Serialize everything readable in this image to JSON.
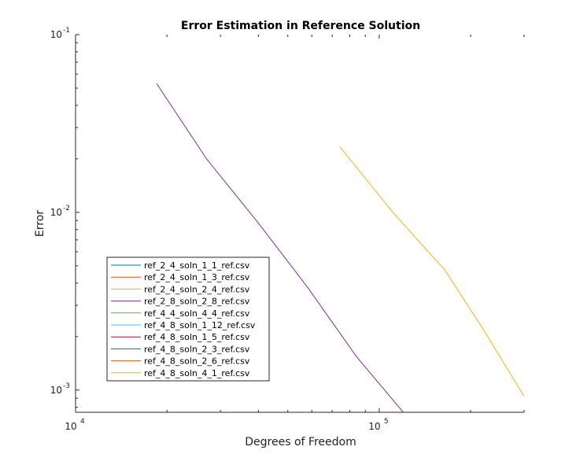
{
  "chart_data": {
    "type": "line",
    "title": "Error Estimation in Reference Solution",
    "xlabel": "Degrees of Freedom",
    "ylabel": "Error",
    "xscale": "log",
    "yscale": "log",
    "xlim": [
      10000,
      300000
    ],
    "ylim": [
      0.00075,
      0.1
    ],
    "x_ticks": [
      {
        "value": 10000,
        "base": "10",
        "exp": "4"
      },
      {
        "value": 100000,
        "base": "10",
        "exp": "5"
      }
    ],
    "y_ticks": [
      {
        "value": 0.001,
        "base": "10",
        "exp": "-3"
      },
      {
        "value": 0.01,
        "base": "10",
        "exp": "-2"
      },
      {
        "value": 0.1,
        "base": "10",
        "exp": "-1"
      }
    ],
    "grid": false,
    "legend_position": "lower-left",
    "series": [
      {
        "name": "ref_2_4_soln_1_1_ref.csv",
        "color": "#0072bd",
        "x": [],
        "y": []
      },
      {
        "name": "ref_2_4_soln_1_3_ref.csv",
        "color": "#d95319",
        "x": [],
        "y": []
      },
      {
        "name": "ref_2_4_soln_2_4_ref.csv",
        "color": "#edb120",
        "x": [
          74000,
          112000,
          165000,
          220000,
          300000
        ],
        "y": [
          0.0235,
          0.0098,
          0.0047,
          0.0022,
          0.00092
        ]
      },
      {
        "name": "ref_2_8_soln_2_8_ref.csv",
        "color": "#7e2f8e",
        "x": [
          18500,
          27000,
          40000,
          58000,
          84000,
          120000
        ],
        "y": [
          0.053,
          0.02,
          0.0087,
          0.0038,
          0.00155,
          0.00075
        ]
      },
      {
        "name": "ref_4_4_soln_4_4_ref.csv",
        "color": "#77ac30",
        "x": [],
        "y": []
      },
      {
        "name": "ref_4_8_soln_1_12_ref.csv",
        "color": "#4dbeee",
        "x": [],
        "y": []
      },
      {
        "name": "ref_4_8_soln_1_5_ref.csv",
        "color": "#a2142f",
        "x": [],
        "y": []
      },
      {
        "name": "ref_4_8_soln_2_3_ref.csv",
        "color": "#0072bd",
        "x": [],
        "y": []
      },
      {
        "name": "ref_4_8_soln_2_6_ref.csv",
        "color": "#d95319",
        "x": [],
        "y": []
      },
      {
        "name": "ref_4_8_soln_4_1_ref.csv",
        "color": "#edb120",
        "x": [],
        "y": []
      }
    ]
  }
}
